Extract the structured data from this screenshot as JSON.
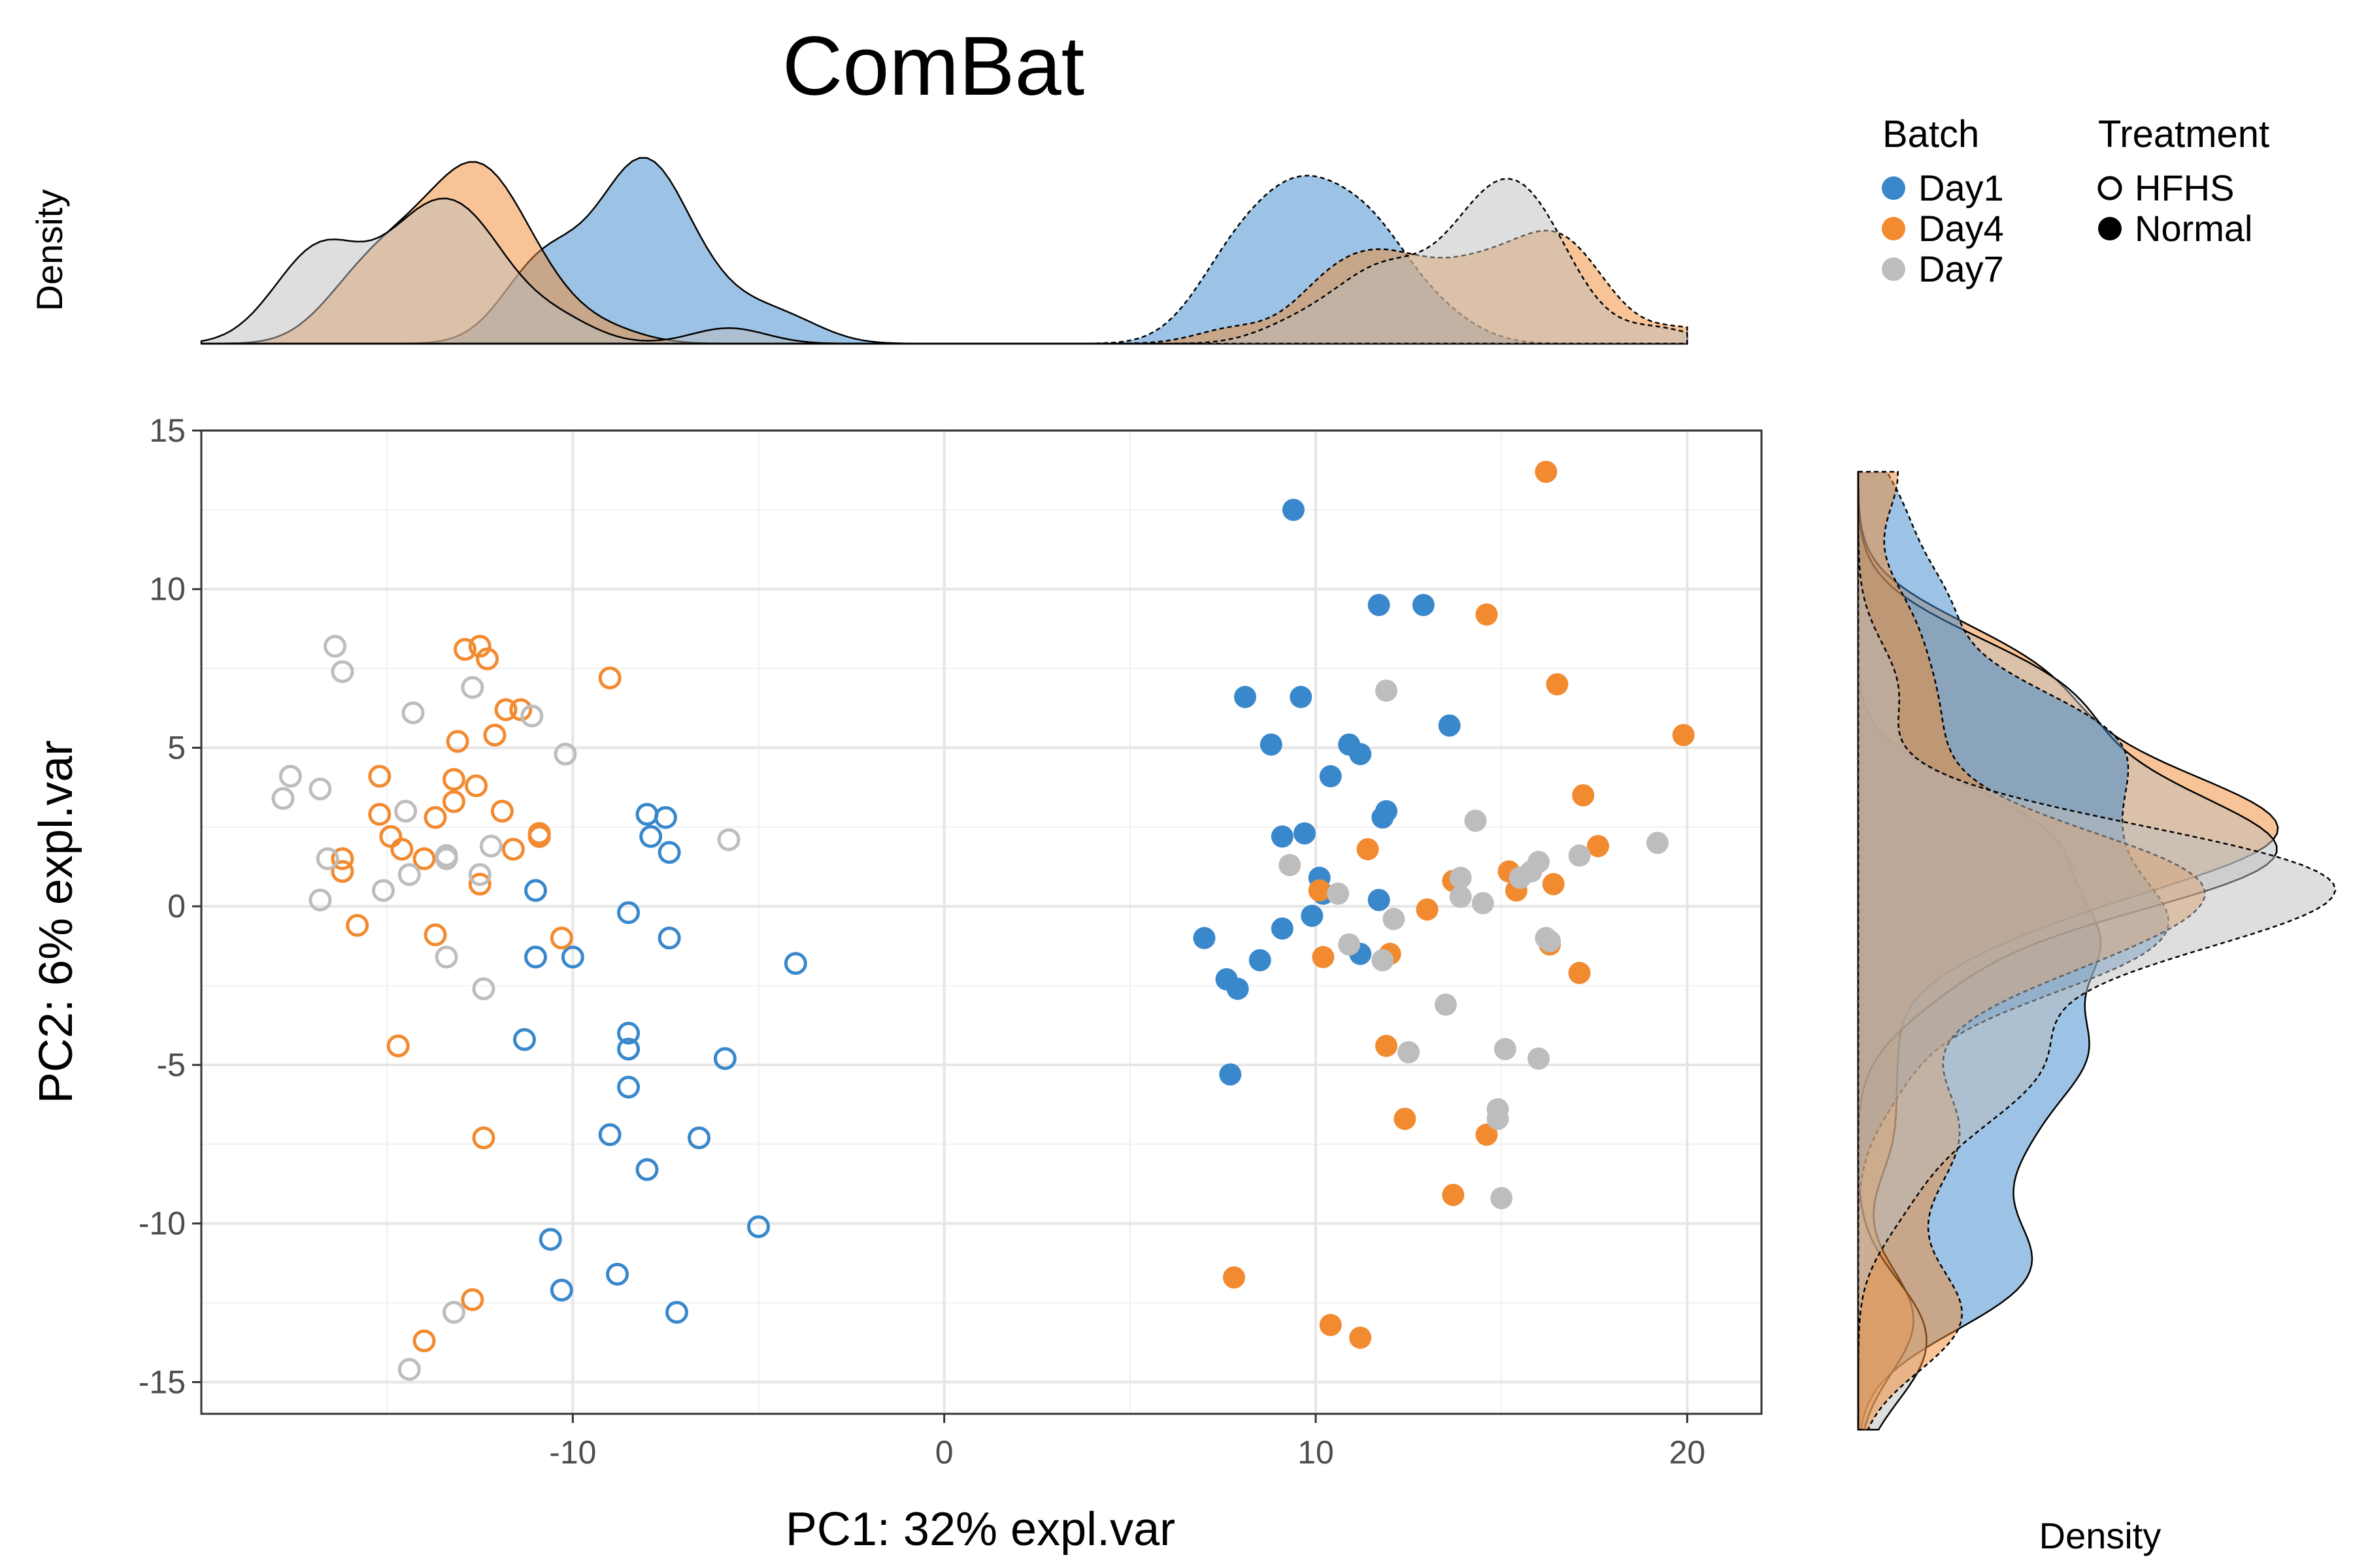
{
  "chart_data": {
    "type": "scatter",
    "title": "ComBat",
    "xlabel": "PC1: 32% expl.var",
    "ylabel": "PC2: 6% expl.var",
    "xlim": [
      -20,
      22
    ],
    "ylim": [
      -16,
      15
    ],
    "x_ticks": [
      -10,
      0,
      10,
      20
    ],
    "y_ticks": [
      15,
      10,
      5,
      0,
      -5,
      -10,
      -15
    ],
    "x_tick_labels": [
      "-10",
      "0",
      "10",
      "20"
    ],
    "y_tick_labels": [
      "15",
      "10",
      "5",
      "0",
      "-5",
      "-10",
      "-15"
    ],
    "grid": true,
    "top_density_label": "Density",
    "right_density_label": "Density",
    "colors": {
      "Day1": "#3a88cc",
      "Day4": "#f28a30",
      "Day7": "#bdbdbd"
    },
    "legend": {
      "placement": "top-right",
      "batch_title": "Batch",
      "batch_items": [
        "Day1",
        "Day4",
        "Day7"
      ],
      "treatment_title": "Treatment",
      "treatment_items": [
        "HFHS",
        "Normal"
      ]
    },
    "series": [
      {
        "batch": "Day1",
        "treatment": "HFHS",
        "filled": false,
        "points": [
          [
            -11,
            0.5
          ],
          [
            -8,
            2.9
          ],
          [
            -7.5,
            2.8
          ],
          [
            -7.9,
            2.2
          ],
          [
            -7.4,
            1.7
          ],
          [
            -8.5,
            -0.2
          ],
          [
            -7.4,
            -1
          ],
          [
            -11,
            -1.6
          ],
          [
            -10,
            -1.6
          ],
          [
            -4,
            -1.8
          ],
          [
            -11.3,
            -4.2
          ],
          [
            -8.5,
            -4
          ],
          [
            -8.5,
            -4.5
          ],
          [
            -5.9,
            -4.8
          ],
          [
            -8.5,
            -5.7
          ],
          [
            -9,
            -7.2
          ],
          [
            -6.6,
            -7.3
          ],
          [
            -8,
            -8.3
          ],
          [
            -5,
            -10.1
          ],
          [
            -10.6,
            -10.5
          ],
          [
            -10.3,
            -12.1
          ],
          [
            -8.8,
            -11.6
          ],
          [
            -7.2,
            -12.8
          ]
        ]
      },
      {
        "batch": "Day4",
        "treatment": "HFHS",
        "filled": false,
        "points": [
          [
            -12.9,
            8.1
          ],
          [
            -12.5,
            8.2
          ],
          [
            -12.3,
            7.8
          ],
          [
            -9,
            7.2
          ],
          [
            -11.8,
            6.2
          ],
          [
            -11.4,
            6.2
          ],
          [
            -12.1,
            5.4
          ],
          [
            -13.1,
            5.2
          ],
          [
            -15.2,
            4.1
          ],
          [
            -13.2,
            4
          ],
          [
            -12.6,
            3.8
          ],
          [
            -13.2,
            3.3
          ],
          [
            -15.2,
            2.9
          ],
          [
            -13.7,
            2.8
          ],
          [
            -11.9,
            3
          ],
          [
            -10.9,
            2.3
          ],
          [
            -10.9,
            2.2
          ],
          [
            -14.9,
            2.2
          ],
          [
            -14.6,
            1.8
          ],
          [
            -11.6,
            1.8
          ],
          [
            -16.2,
            1.5
          ],
          [
            -14,
            1.5
          ],
          [
            -16.2,
            1.1
          ],
          [
            -12.5,
            0.7
          ],
          [
            -15.8,
            -0.6
          ],
          [
            -13.7,
            -0.9
          ],
          [
            -10.3,
            -1
          ],
          [
            -14.7,
            -4.4
          ],
          [
            -12.4,
            -7.3
          ],
          [
            -12.7,
            -12.4
          ],
          [
            -14,
            -13.7
          ]
        ]
      },
      {
        "batch": "Day7",
        "treatment": "HFHS",
        "filled": false,
        "points": [
          [
            -16.4,
            8.2
          ],
          [
            -16.2,
            7.4
          ],
          [
            -12.7,
            6.9
          ],
          [
            -14.3,
            6.1
          ],
          [
            -11.1,
            6
          ],
          [
            -10.2,
            4.8
          ],
          [
            -17.6,
            4.1
          ],
          [
            -16.8,
            3.7
          ],
          [
            -17.8,
            3.4
          ],
          [
            -14.5,
            3
          ],
          [
            -13.4,
            1.6
          ],
          [
            -12.2,
            1.9
          ],
          [
            -5.8,
            2.1
          ],
          [
            -16.6,
            1.5
          ],
          [
            -13.4,
            1.5
          ],
          [
            -14.4,
            1
          ],
          [
            -12.5,
            1
          ],
          [
            -15.1,
            0.5
          ],
          [
            -16.8,
            0.2
          ],
          [
            -13.4,
            -1.6
          ],
          [
            -12.4,
            -2.6
          ],
          [
            -13.2,
            -12.8
          ],
          [
            -14.4,
            -14.6
          ]
        ]
      },
      {
        "batch": "Day1",
        "treatment": "Normal",
        "filled": true,
        "points": [
          [
            9.4,
            12.5
          ],
          [
            11.7,
            9.5
          ],
          [
            12.9,
            9.5
          ],
          [
            8.1,
            6.6
          ],
          [
            9.6,
            6.6
          ],
          [
            13.6,
            5.7
          ],
          [
            8.8,
            5.1
          ],
          [
            10.9,
            5.1
          ],
          [
            11.2,
            4.8
          ],
          [
            10.4,
            4.1
          ],
          [
            11.9,
            3
          ],
          [
            11.8,
            2.8
          ],
          [
            9.7,
            2.3
          ],
          [
            9.1,
            2.2
          ],
          [
            10.1,
            0.9
          ],
          [
            11.7,
            0.2
          ],
          [
            10.2,
            0.4
          ],
          [
            9.9,
            -0.3
          ],
          [
            9.1,
            -0.7
          ],
          [
            7,
            -1
          ],
          [
            11.2,
            -1.5
          ],
          [
            8.5,
            -1.7
          ],
          [
            7.6,
            -2.3
          ],
          [
            7.9,
            -2.6
          ],
          [
            7.7,
            -5.3
          ]
        ]
      },
      {
        "batch": "Day4",
        "treatment": "Normal",
        "filled": true,
        "points": [
          [
            16.2,
            13.7
          ],
          [
            14.6,
            9.2
          ],
          [
            16.5,
            7
          ],
          [
            19.9,
            5.4
          ],
          [
            17.2,
            3.5
          ],
          [
            11.4,
            1.8
          ],
          [
            17.6,
            1.9
          ],
          [
            15.2,
            1.1
          ],
          [
            13.7,
            0.8
          ],
          [
            16.4,
            0.7
          ],
          [
            10.1,
            0.5
          ],
          [
            15.4,
            0.5
          ],
          [
            13,
            -0.1
          ],
          [
            10.2,
            -1.6
          ],
          [
            12,
            -1.5
          ],
          [
            17.1,
            -2.1
          ],
          [
            16.3,
            -1.2
          ],
          [
            11.9,
            -4.4
          ],
          [
            12.4,
            -6.7
          ],
          [
            14.6,
            -7.2
          ],
          [
            13.7,
            -9.1
          ],
          [
            7.8,
            -11.7
          ],
          [
            10.4,
            -13.2
          ],
          [
            11.2,
            -13.6
          ]
        ]
      },
      {
        "batch": "Day7",
        "treatment": "Normal",
        "filled": true,
        "points": [
          [
            11.9,
            6.8
          ],
          [
            14.3,
            2.7
          ],
          [
            19.2,
            2
          ],
          [
            13.9,
            0.9
          ],
          [
            16,
            1.4
          ],
          [
            15.8,
            1.1
          ],
          [
            17.1,
            1.6
          ],
          [
            15.5,
            0.9
          ],
          [
            9.3,
            1.3
          ],
          [
            10.6,
            0.4
          ],
          [
            13.9,
            0.3
          ],
          [
            14.5,
            0.1
          ],
          [
            12.1,
            -0.4
          ],
          [
            16.2,
            -1
          ],
          [
            16.3,
            -1.1
          ],
          [
            10.9,
            -1.2
          ],
          [
            11.8,
            -1.7
          ],
          [
            13.5,
            -3.1
          ],
          [
            12.5,
            -4.6
          ],
          [
            15.1,
            -4.5
          ],
          [
            16,
            -4.8
          ],
          [
            14.9,
            -6.4
          ],
          [
            14.9,
            -6.7
          ],
          [
            15,
            -9.2
          ]
        ]
      }
    ]
  }
}
